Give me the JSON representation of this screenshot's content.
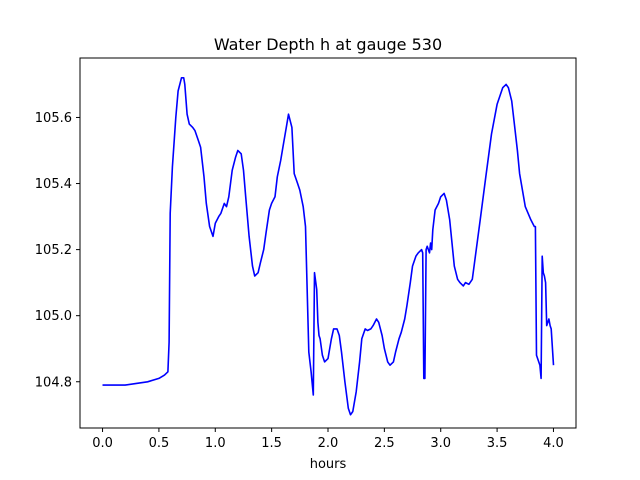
{
  "chart_data": {
    "type": "line",
    "title": "Water Depth h at gauge 530",
    "xlabel": "hours",
    "ylabel": "",
    "xlim": [
      -0.2,
      4.2
    ],
    "ylim": [
      104.66,
      105.78
    ],
    "xticks": [
      0.0,
      0.5,
      1.0,
      1.5,
      2.0,
      2.5,
      3.0,
      3.5,
      4.0
    ],
    "xtick_labels": [
      "0.0",
      "0.5",
      "1.0",
      "1.5",
      "2.0",
      "2.5",
      "3.0",
      "3.5",
      "4.0"
    ],
    "yticks": [
      104.8,
      105.0,
      105.2,
      105.4,
      105.6
    ],
    "ytick_labels": [
      "104.8",
      "105.0",
      "105.2",
      "105.4",
      "105.6"
    ],
    "grid": false,
    "legend": "none",
    "series": [
      {
        "color": "#0000ff",
        "x": [
          0.0,
          0.2,
          0.3,
          0.4,
          0.5,
          0.55,
          0.58,
          0.59,
          0.6,
          0.62,
          0.65,
          0.67,
          0.7,
          0.72,
          0.73,
          0.75,
          0.77,
          0.8,
          0.82,
          0.85,
          0.87,
          0.9,
          0.92,
          0.95,
          0.98,
          1.0,
          1.03,
          1.05,
          1.08,
          1.1,
          1.12,
          1.15,
          1.18,
          1.2,
          1.23,
          1.25,
          1.27,
          1.3,
          1.33,
          1.35,
          1.38,
          1.4,
          1.43,
          1.45,
          1.48,
          1.5,
          1.53,
          1.55,
          1.58,
          1.6,
          1.63,
          1.65,
          1.68,
          1.7,
          1.73,
          1.75,
          1.78,
          1.8,
          1.83,
          1.85,
          1.87,
          1.88,
          1.9,
          1.91,
          1.92,
          1.93,
          1.95,
          1.97,
          2.0,
          2.03,
          2.05,
          2.08,
          2.1,
          2.12,
          2.15,
          2.18,
          2.2,
          2.22,
          2.25,
          2.28,
          2.3,
          2.33,
          2.35,
          2.38,
          2.4,
          2.43,
          2.45,
          2.48,
          2.5,
          2.53,
          2.55,
          2.58,
          2.6,
          2.63,
          2.65,
          2.68,
          2.7,
          2.73,
          2.75,
          2.78,
          2.8,
          2.83,
          2.84,
          2.85,
          2.86,
          2.87,
          2.88,
          2.9,
          2.91,
          2.92,
          2.93,
          2.95,
          2.98,
          3.0,
          3.03,
          3.05,
          3.08,
          3.1,
          3.12,
          3.15,
          3.17,
          3.2,
          3.22,
          3.25,
          3.28,
          3.3,
          3.35,
          3.4,
          3.45,
          3.5,
          3.55,
          3.58,
          3.6,
          3.63,
          3.65,
          3.68,
          3.7,
          3.75,
          3.8,
          3.83,
          3.84,
          3.85,
          3.88,
          3.89,
          3.9,
          3.91,
          3.92,
          3.93,
          3.94,
          3.95,
          3.96,
          3.97,
          3.98,
          4.0
        ],
        "y": [
          104.79,
          104.79,
          104.795,
          104.8,
          104.81,
          104.82,
          104.83,
          104.92,
          105.31,
          105.45,
          105.6,
          105.68,
          105.72,
          105.72,
          105.7,
          105.61,
          105.58,
          105.57,
          105.56,
          105.53,
          105.51,
          105.42,
          105.34,
          105.27,
          105.24,
          105.28,
          105.3,
          105.31,
          105.34,
          105.33,
          105.36,
          105.44,
          105.48,
          105.5,
          105.49,
          105.44,
          105.36,
          105.24,
          105.15,
          105.12,
          105.13,
          105.16,
          105.2,
          105.25,
          105.32,
          105.34,
          105.36,
          105.42,
          105.47,
          105.51,
          105.57,
          105.61,
          105.57,
          105.43,
          105.4,
          105.38,
          105.33,
          105.27,
          104.89,
          104.83,
          104.76,
          105.13,
          105.08,
          104.98,
          104.94,
          104.93,
          104.88,
          104.86,
          104.87,
          104.93,
          104.96,
          104.96,
          104.94,
          104.89,
          104.8,
          104.72,
          104.7,
          104.71,
          104.77,
          104.86,
          104.93,
          104.96,
          104.955,
          104.96,
          104.97,
          104.99,
          104.98,
          104.94,
          104.9,
          104.86,
          104.85,
          104.86,
          104.89,
          104.93,
          104.95,
          104.99,
          105.03,
          105.1,
          105.15,
          105.18,
          105.19,
          105.2,
          105.19,
          104.81,
          104.81,
          105.2,
          105.21,
          105.19,
          105.22,
          105.2,
          105.26,
          105.32,
          105.34,
          105.36,
          105.37,
          105.35,
          105.29,
          105.22,
          105.15,
          105.11,
          105.1,
          105.09,
          105.1,
          105.095,
          105.11,
          105.16,
          105.29,
          105.42,
          105.55,
          105.64,
          105.69,
          105.7,
          105.69,
          105.65,
          105.59,
          105.5,
          105.43,
          105.33,
          105.29,
          105.27,
          105.27,
          104.88,
          104.85,
          104.81,
          105.18,
          105.13,
          105.12,
          105.1,
          104.97,
          104.98,
          104.99,
          104.97,
          104.96,
          104.85
        ]
      }
    ]
  }
}
